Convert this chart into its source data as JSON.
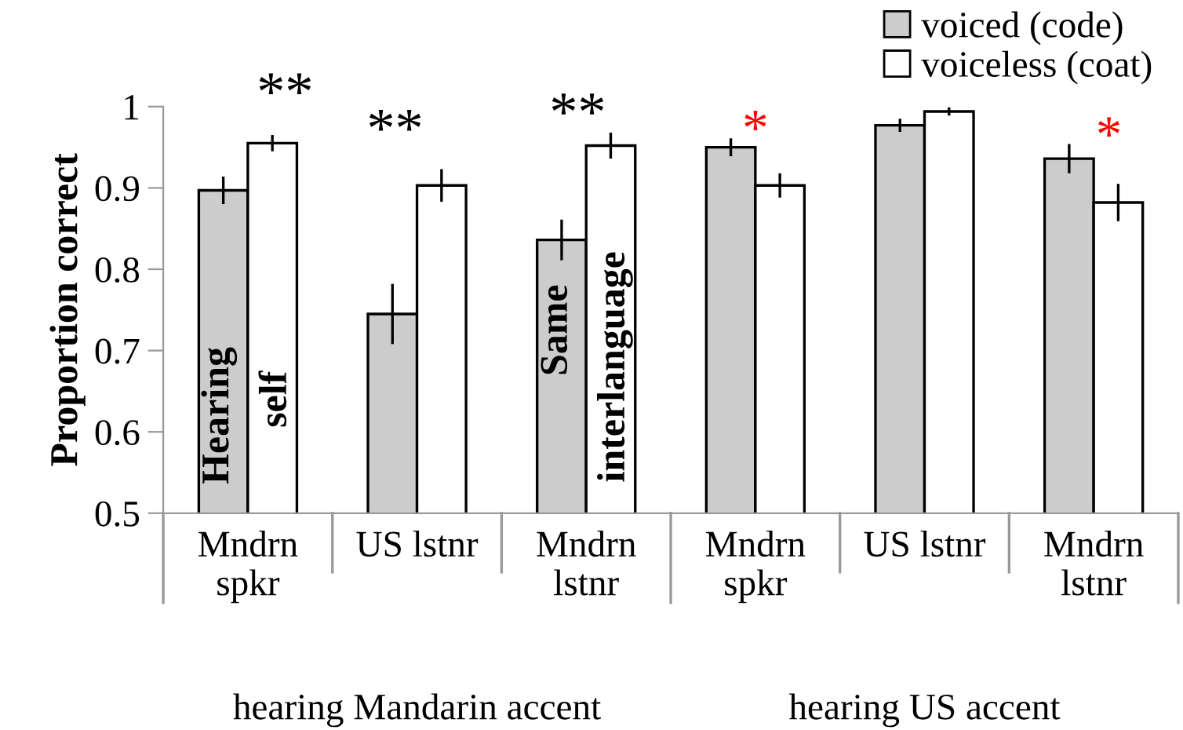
{
  "chart_data": {
    "type": "bar",
    "ylabel": "Proportion correct",
    "categories": [
      "Mndrn\nspkr",
      "US lstnr",
      "Mndrn\nlstnr",
      "Mndrn\nspkr",
      "US lstnr",
      "Mndrn\nlstnr"
    ],
    "series": [
      {
        "name": "voiced (code)",
        "color": "#cccccc",
        "values": [
          0.897,
          0.745,
          0.836,
          0.95,
          0.977,
          0.936
        ],
        "errors": [
          0.017,
          0.037,
          0.025,
          0.011,
          0.008,
          0.018
        ]
      },
      {
        "name": "voiceless (coat)",
        "color": "#ffffff",
        "values": [
          0.955,
          0.903,
          0.952,
          0.903,
          0.994,
          0.882
        ],
        "errors": [
          0.01,
          0.02,
          0.016,
          0.015,
          0.005,
          0.023
        ]
      }
    ],
    "ylim": [
      0.5,
      1
    ],
    "yticks": [
      0.5,
      0.6,
      0.7,
      0.8,
      0.9,
      1
    ],
    "grid": false,
    "legend": "top right",
    "annotations": [
      "**",
      "**",
      "**",
      "*",
      "*",
      "Hearing",
      "self",
      "Same",
      "interlanguage",
      "hearing Mandarin accent",
      "hearing US accent"
    ]
  }
}
